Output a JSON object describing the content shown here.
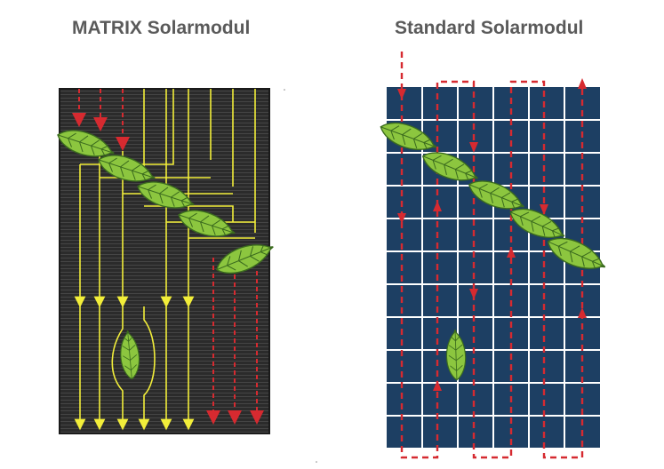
{
  "titles": {
    "matrix": "MATRIX Solarmodul",
    "standard": "Standard Solarmodul"
  },
  "colors": {
    "matrix_panel": "#2b2b2b",
    "matrix_stripe": "#3c3c3c",
    "standard_panel": "#1d3f63",
    "grid_line": "#ffffff",
    "current_flow": "#f2ee3a",
    "interrupted_flow": "#d62a30",
    "leaf_fill": "#8cc63f",
    "leaf_vein": "#3b6b1e"
  },
  "icons": {
    "leaf": "leaf-icon",
    "flow_arrow": "arrow-icon"
  }
}
